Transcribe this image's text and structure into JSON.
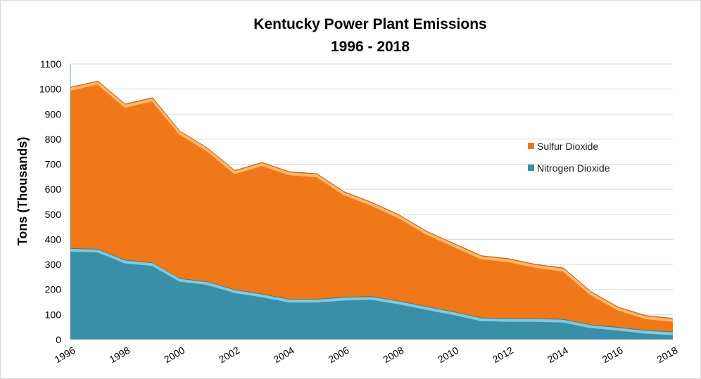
{
  "chart_data": {
    "type": "area",
    "stacked": true,
    "title": [
      "Kentucky Power Plant Emissions",
      "1996 - 2018"
    ],
    "xlabel": "",
    "ylabel": "Tons (Thousands)",
    "x": [
      1996,
      1997,
      1998,
      1999,
      2000,
      2001,
      2002,
      2003,
      2004,
      2005,
      2006,
      2007,
      2008,
      2009,
      2010,
      2011,
      2012,
      2013,
      2014,
      2015,
      2016,
      2017,
      2018
    ],
    "x_tick_labels": [
      "1996",
      "1998",
      "2000",
      "2002",
      "2004",
      "2006",
      "2008",
      "2010",
      "2012",
      "2014",
      "2016",
      "2018"
    ],
    "ylim": [
      0,
      1100
    ],
    "y_ticks": [
      0,
      100,
      200,
      300,
      400,
      500,
      600,
      700,
      800,
      900,
      1000,
      1100
    ],
    "grid": true,
    "legend_position": "right",
    "series": [
      {
        "name": "Nitrogen Dioxide",
        "color": "#3a8fa8",
        "values": [
          365,
          362,
          318,
          308,
          245,
          232,
          200,
          183,
          162,
          162,
          170,
          173,
          155,
          133,
          112,
          88,
          85,
          85,
          82,
          60,
          50,
          38,
          32
        ]
      },
      {
        "name": "Sulfur Dioxide",
        "color": "#f07818",
        "values": [
          642,
          670,
          622,
          657,
          587,
          533,
          475,
          524,
          508,
          500,
          420,
          375,
          343,
          300,
          272,
          247,
          238,
          215,
          204,
          132,
          80,
          58,
          53
        ]
      }
    ],
    "legend_entries": [
      "Sulfur Dioxide",
      "Nitrogen Dioxide"
    ]
  }
}
